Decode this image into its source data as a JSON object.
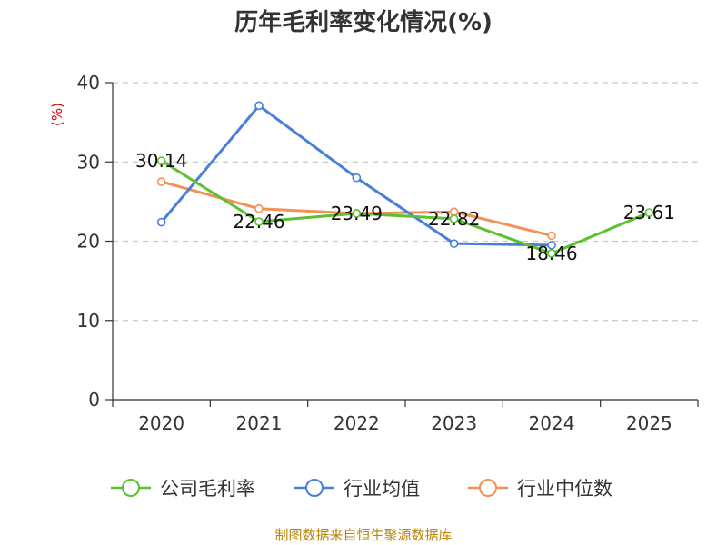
{
  "source_note": "制图数据来自恒生聚源数据库",
  "chart_data": {
    "type": "line",
    "title": "历年毛利率变化情况(%)",
    "ylabel": "(%)",
    "xlabel": "",
    "categories": [
      "2020",
      "2021",
      "2022",
      "2023",
      "2024",
      "2025"
    ],
    "ylim": [
      0,
      40
    ],
    "yticks": [
      0,
      10,
      20,
      30,
      40
    ],
    "grid": true,
    "legend_position": "bottom",
    "series": [
      {
        "name": "公司毛利率",
        "color": "#5bc12e",
        "values": [
          30.14,
          22.46,
          23.49,
          22.82,
          18.46,
          23.61
        ],
        "labels": [
          "30.14",
          "22.46",
          "23.49",
          "22.82",
          "18.46",
          "23.61"
        ]
      },
      {
        "name": "行业均值",
        "color": "#4a7fd8",
        "values": [
          22.4,
          37.1,
          28.0,
          19.7,
          19.5,
          null
        ]
      },
      {
        "name": "行业中位数",
        "color": "#f39156",
        "values": [
          27.5,
          24.1,
          23.5,
          23.7,
          20.7,
          null
        ]
      }
    ]
  }
}
